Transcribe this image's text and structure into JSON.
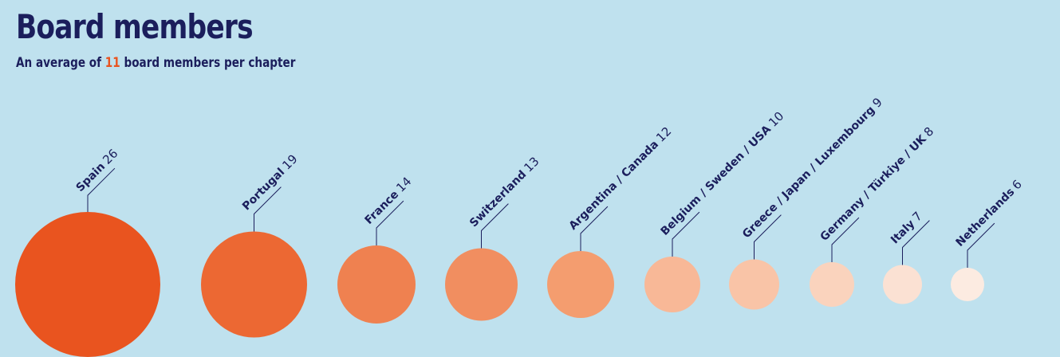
{
  "title": "Board members",
  "subtitle": {
    "prefix": "An average of ",
    "highlight": "11",
    "suffix": " board members per chapter"
  },
  "colors": {
    "background": "#bfe1ee",
    "text": "#1b1e5c",
    "highlight": "#e95420",
    "leader": "#1b1e5c"
  },
  "chart_data": {
    "type": "bubble",
    "title": "Board members",
    "subtitle": "An average of 11 board members per chapter",
    "average": 11,
    "categories": [
      "Spain",
      "Portugal",
      "France",
      "Switzerland",
      "Argentina / Canada",
      "Belgium / Sweden / USA",
      "Greece / Japan / Luxembourg",
      "Germany / Türkiye / UK",
      "Italy",
      "Netherlands"
    ],
    "values": [
      26,
      19,
      14,
      13,
      12,
      10,
      9,
      8,
      7,
      6
    ],
    "colors": [
      "#e9541f",
      "#ec6833",
      "#ef8150",
      "#f18e60",
      "#f49d6f",
      "#f8b897",
      "#f9c4a7",
      "#fad3bd",
      "#fbe1d3",
      "#fcebe1"
    ]
  }
}
